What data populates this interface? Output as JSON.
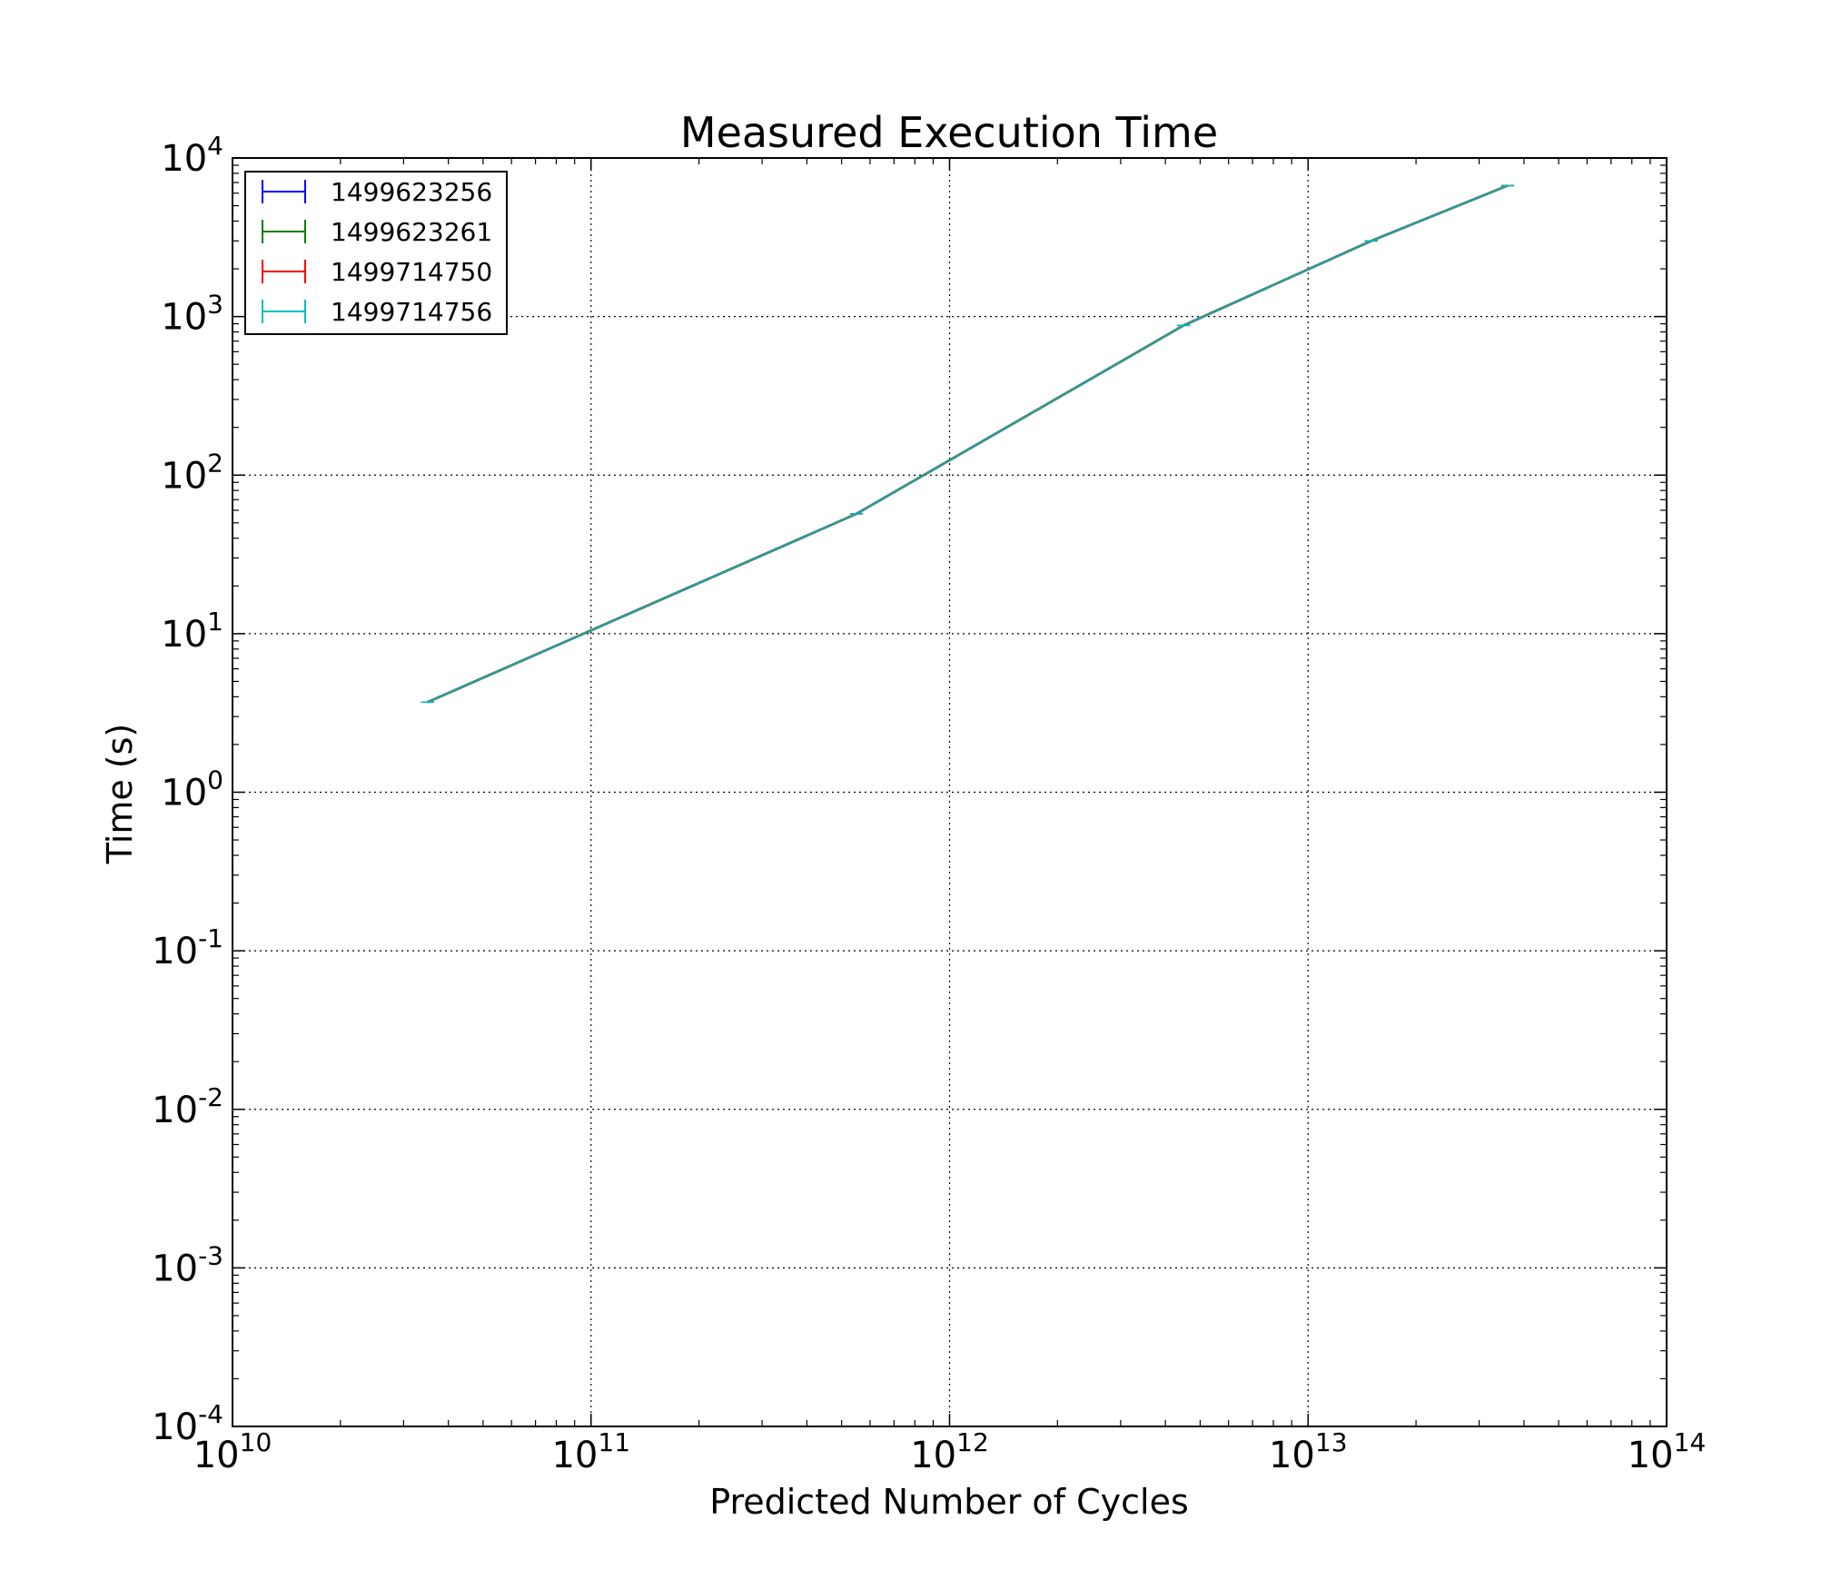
{
  "chart_data": {
    "type": "line",
    "title": "Measured Execution Time",
    "xlabel": "Predicted Number of Cycles",
    "ylabel": "Time (s)",
    "xscale": "log",
    "yscale": "log",
    "xlim": [
      10000000000.0,
      100000000000000.0
    ],
    "ylim": [
      0.0001,
      10000
    ],
    "grid": true,
    "legend_position": "top-left",
    "x_ticks": [
      {
        "base": "10",
        "exp": "10"
      },
      {
        "base": "10",
        "exp": "11"
      },
      {
        "base": "10",
        "exp": "12"
      },
      {
        "base": "10",
        "exp": "13"
      },
      {
        "base": "10",
        "exp": "14"
      }
    ],
    "y_ticks": [
      {
        "base": "10",
        "exp": "-4"
      },
      {
        "base": "10",
        "exp": "-3"
      },
      {
        "base": "10",
        "exp": "-2"
      },
      {
        "base": "10",
        "exp": "-1"
      },
      {
        "base": "10",
        "exp": "0"
      },
      {
        "base": "10",
        "exp": "1"
      },
      {
        "base": "10",
        "exp": "2"
      },
      {
        "base": "10",
        "exp": "3"
      },
      {
        "base": "10",
        "exp": "4"
      }
    ],
    "x": [
      35000000000.0,
      550000000000.0,
      4500000000000.0,
      15000000000000.0,
      36000000000000.0
    ],
    "series": [
      {
        "name": "1499623256",
        "color": "#0000ff",
        "values": [
          3.7,
          57,
          880,
          3000,
          6700
        ]
      },
      {
        "name": "1499623261",
        "color": "#008000",
        "values": [
          3.7,
          57,
          880,
          3000,
          6700
        ]
      },
      {
        "name": "1499714750",
        "color": "#ff0000",
        "values": [
          3.7,
          57,
          880,
          3000,
          6700
        ]
      },
      {
        "name": "1499714756",
        "color": "#00bfbf",
        "values": [
          3.7,
          57,
          880,
          3000,
          6700
        ]
      }
    ],
    "plotted_line_color": "#2e9a94"
  }
}
